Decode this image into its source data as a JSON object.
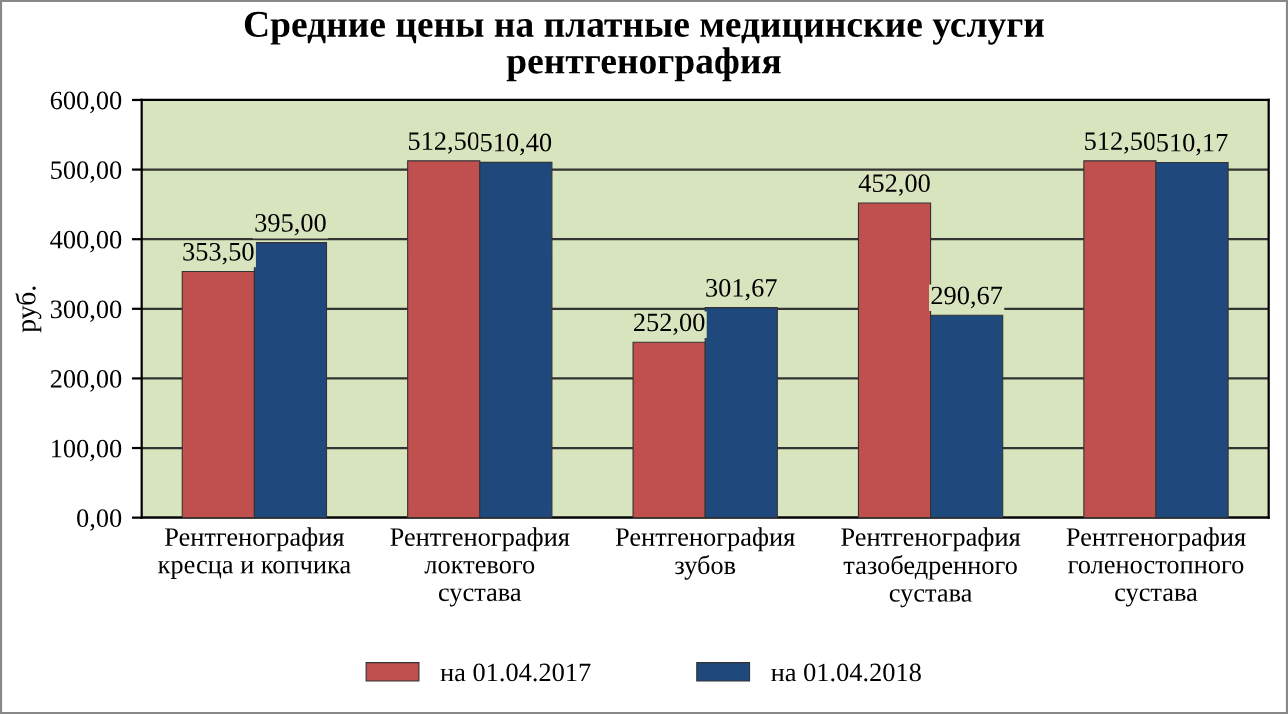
{
  "chart_data": {
    "type": "bar",
    "title": "Средние цены на платные медицинские услуги\nрентгенография",
    "ylabel": "руб.",
    "categories": [
      "Рентгенография\nкресца и копчика",
      "Рентгенография\nлоктевого\nсустава",
      "Рентгенография\nзубов",
      "Рентгенография\nтазобедренного\nсустава",
      "Рентгенография\nголеностопного\nсустава"
    ],
    "series": [
      {
        "name": "на 01.04.2017",
        "color": "#c0504d",
        "values": [
          353.5,
          512.5,
          252.0,
          452.0,
          512.5
        ],
        "value_labels": [
          "353,50",
          "512,50",
          "252,00",
          "452,00",
          "512,50"
        ]
      },
      {
        "name": "на 01.04.2018",
        "color": "#1f497d",
        "values": [
          395.0,
          510.4,
          301.67,
          290.67,
          510.17
        ],
        "value_labels": [
          "395,00",
          "510,40",
          "301,67",
          "290,67",
          "510,17"
        ]
      }
    ],
    "ylim": [
      0,
      600
    ],
    "yticks": [
      {
        "value": 0,
        "label": "0,00"
      },
      {
        "value": 100,
        "label": "100,00"
      },
      {
        "value": 200,
        "label": "200,00"
      },
      {
        "value": 300,
        "label": "300,00"
      },
      {
        "value": 400,
        "label": "400,00"
      },
      {
        "value": 500,
        "label": "500,00"
      },
      {
        "value": 600,
        "label": "600,00"
      }
    ],
    "grid": "y",
    "legend": "bottom"
  }
}
